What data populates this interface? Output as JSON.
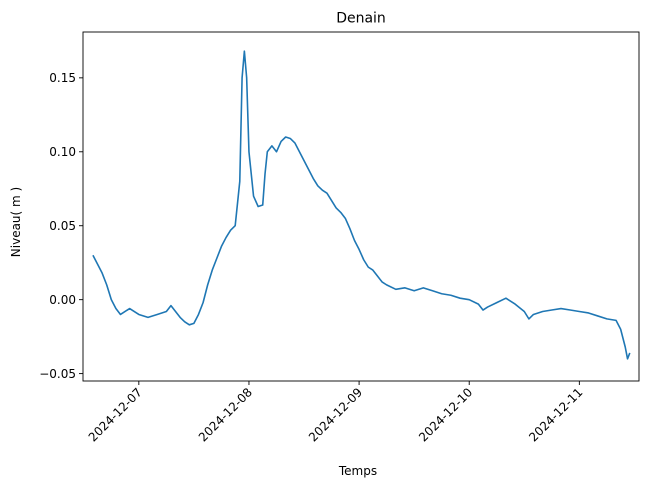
{
  "chart_data": {
    "type": "line",
    "title": "Denain",
    "xlabel": "Temps",
    "ylabel": "Niveau( m )",
    "x_axis_type": "date",
    "xlim": [
      "2024-12-06 11:50",
      "2024-12-11 13:00"
    ],
    "ylim": [
      -0.055,
      0.181
    ],
    "grid": false,
    "x_ticks": [
      "2024-12-07",
      "2024-12-08",
      "2024-12-09",
      "2024-12-10",
      "2024-12-11"
    ],
    "y_ticks": [
      -0.05,
      0.0,
      0.05,
      0.1,
      0.15
    ],
    "y_tick_labels": [
      "−0.05",
      "0.00",
      "0.05",
      "0.10",
      "0.15"
    ],
    "series": [
      {
        "color": "#1f77b4",
        "points": [
          [
            "2024-12-06 14:00",
            0.03
          ],
          [
            "2024-12-06 15:00",
            0.024
          ],
          [
            "2024-12-06 16:00",
            0.018
          ],
          [
            "2024-12-06 17:00",
            0.01
          ],
          [
            "2024-12-06 18:00",
            0.0
          ],
          [
            "2024-12-06 19:00",
            -0.006
          ],
          [
            "2024-12-06 20:00",
            -0.01
          ],
          [
            "2024-12-06 22:00",
            -0.006
          ],
          [
            "2024-12-07 00:00",
            -0.01
          ],
          [
            "2024-12-07 02:00",
            -0.012
          ],
          [
            "2024-12-07 04:00",
            -0.01
          ],
          [
            "2024-12-07 06:00",
            -0.008
          ],
          [
            "2024-12-07 07:00",
            -0.004
          ],
          [
            "2024-12-07 08:00",
            -0.008
          ],
          [
            "2024-12-07 09:00",
            -0.012
          ],
          [
            "2024-12-07 10:00",
            -0.015
          ],
          [
            "2024-12-07 11:00",
            -0.017
          ],
          [
            "2024-12-07 12:00",
            -0.016
          ],
          [
            "2024-12-07 13:00",
            -0.01
          ],
          [
            "2024-12-07 14:00",
            -0.002
          ],
          [
            "2024-12-07 15:00",
            0.01
          ],
          [
            "2024-12-07 16:00",
            0.02
          ],
          [
            "2024-12-07 17:00",
            0.028
          ],
          [
            "2024-12-07 18:00",
            0.036
          ],
          [
            "2024-12-07 19:00",
            0.042
          ],
          [
            "2024-12-07 20:00",
            0.047
          ],
          [
            "2024-12-07 21:00",
            0.05
          ],
          [
            "2024-12-07 22:00",
            0.08
          ],
          [
            "2024-12-07 22:30",
            0.15
          ],
          [
            "2024-12-07 23:00",
            0.168
          ],
          [
            "2024-12-07 23:30",
            0.15
          ],
          [
            "2024-12-08 00:00",
            0.1
          ],
          [
            "2024-12-08 01:00",
            0.07
          ],
          [
            "2024-12-08 02:00",
            0.063
          ],
          [
            "2024-12-08 03:00",
            0.064
          ],
          [
            "2024-12-08 03:30",
            0.085
          ],
          [
            "2024-12-08 04:00",
            0.1
          ],
          [
            "2024-12-08 05:00",
            0.104
          ],
          [
            "2024-12-08 06:00",
            0.1
          ],
          [
            "2024-12-08 07:00",
            0.107
          ],
          [
            "2024-12-08 08:00",
            0.11
          ],
          [
            "2024-12-08 09:00",
            0.109
          ],
          [
            "2024-12-08 10:00",
            0.106
          ],
          [
            "2024-12-08 11:00",
            0.1
          ],
          [
            "2024-12-08 12:00",
            0.094
          ],
          [
            "2024-12-08 13:00",
            0.088
          ],
          [
            "2024-12-08 14:00",
            0.082
          ],
          [
            "2024-12-08 15:00",
            0.077
          ],
          [
            "2024-12-08 16:00",
            0.074
          ],
          [
            "2024-12-08 17:00",
            0.072
          ],
          [
            "2024-12-08 18:00",
            0.067
          ],
          [
            "2024-12-08 19:00",
            0.062
          ],
          [
            "2024-12-08 20:00",
            0.059
          ],
          [
            "2024-12-08 21:00",
            0.055
          ],
          [
            "2024-12-08 22:00",
            0.048
          ],
          [
            "2024-12-08 23:00",
            0.04
          ],
          [
            "2024-12-09 00:00",
            0.034
          ],
          [
            "2024-12-09 01:00",
            0.027
          ],
          [
            "2024-12-09 02:00",
            0.022
          ],
          [
            "2024-12-09 03:00",
            0.02
          ],
          [
            "2024-12-09 04:00",
            0.016
          ],
          [
            "2024-12-09 05:00",
            0.012
          ],
          [
            "2024-12-09 06:00",
            0.01
          ],
          [
            "2024-12-09 08:00",
            0.007
          ],
          [
            "2024-12-09 10:00",
            0.008
          ],
          [
            "2024-12-09 12:00",
            0.006
          ],
          [
            "2024-12-09 14:00",
            0.008
          ],
          [
            "2024-12-09 16:00",
            0.006
          ],
          [
            "2024-12-09 18:00",
            0.004
          ],
          [
            "2024-12-09 20:00",
            0.003
          ],
          [
            "2024-12-09 22:00",
            0.001
          ],
          [
            "2024-12-10 00:00",
            0.0
          ],
          [
            "2024-12-10 02:00",
            -0.003
          ],
          [
            "2024-12-10 03:00",
            -0.007
          ],
          [
            "2024-12-10 04:00",
            -0.005
          ],
          [
            "2024-12-10 06:00",
            -0.002
          ],
          [
            "2024-12-10 08:00",
            0.001
          ],
          [
            "2024-12-10 10:00",
            -0.003
          ],
          [
            "2024-12-10 12:00",
            -0.008
          ],
          [
            "2024-12-10 13:00",
            -0.013
          ],
          [
            "2024-12-10 14:00",
            -0.01
          ],
          [
            "2024-12-10 16:00",
            -0.008
          ],
          [
            "2024-12-10 18:00",
            -0.007
          ],
          [
            "2024-12-10 20:00",
            -0.006
          ],
          [
            "2024-12-10 22:00",
            -0.007
          ],
          [
            "2024-12-11 00:00",
            -0.008
          ],
          [
            "2024-12-11 02:00",
            -0.009
          ],
          [
            "2024-12-11 04:00",
            -0.011
          ],
          [
            "2024-12-11 06:00",
            -0.013
          ],
          [
            "2024-12-11 08:00",
            -0.014
          ],
          [
            "2024-12-11 09:00",
            -0.02
          ],
          [
            "2024-12-11 10:00",
            -0.032
          ],
          [
            "2024-12-11 10:30",
            -0.04
          ],
          [
            "2024-12-11 11:00",
            -0.036
          ]
        ]
      }
    ]
  }
}
